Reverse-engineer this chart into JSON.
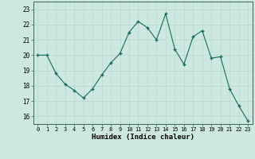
{
  "x": [
    0,
    1,
    2,
    3,
    4,
    5,
    6,
    7,
    8,
    9,
    10,
    11,
    12,
    13,
    14,
    15,
    16,
    17,
    18,
    19,
    20,
    21,
    22,
    23
  ],
  "y": [
    20.0,
    20.0,
    18.8,
    18.1,
    17.7,
    17.2,
    17.8,
    18.7,
    19.5,
    20.1,
    21.5,
    22.2,
    21.8,
    21.0,
    22.7,
    20.4,
    19.4,
    21.2,
    21.6,
    19.8,
    19.9,
    17.8,
    16.7,
    15.7
  ],
  "xlabel": "Humidex (Indice chaleur)",
  "ylim": [
    15.5,
    23.5
  ],
  "xlim": [
    -0.5,
    23.5
  ],
  "yticks": [
    16,
    17,
    18,
    19,
    20,
    21,
    22,
    23
  ],
  "xticks": [
    0,
    1,
    2,
    3,
    4,
    5,
    6,
    7,
    8,
    9,
    10,
    11,
    12,
    13,
    14,
    15,
    16,
    17,
    18,
    19,
    20,
    21,
    22,
    23
  ],
  "line_color": "#1a6b5a",
  "marker_color": "#1a6b5a",
  "bg_color": "#cce8e0",
  "grid_color": "#b8d8d0",
  "plot_bg": "#cce8e0",
  "fig_bg": "#cce8e0"
}
